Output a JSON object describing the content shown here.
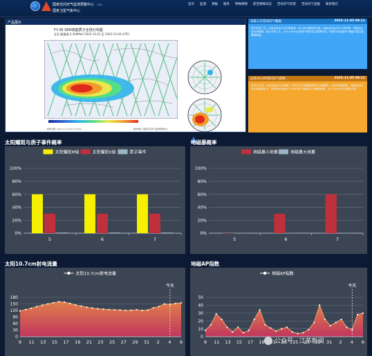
{
  "header": {
    "org_line1": "国家空间天气监测预警中心",
    "org_line2": "国家卫星气象中心",
    "org_en": "CMA",
    "nav": [
      "首页",
      "监测",
      "预报",
      "服务",
      "特殊保障",
      "航空保障日志",
      "空间天气科普",
      "空间天气宣报",
      "联系我们"
    ]
  },
  "product": {
    "panel_title": "产品展示",
    "map_caption": "FY-3E SEM高能质子全球分布图",
    "map_subcaption": "全天    能量道:3-300MeV    2025-10-21 至 2025-11-04 (UTC)",
    "source_left": "制作日期: 2025-11-04 06:41 (UTC)",
    "source_right": "制作单位: 国家空间天气监测预警中心",
    "site_url": "spaceweather.cma.gov.cn"
  },
  "alerts": [
    {
      "title": "未来三天空间天气警报",
      "time": "2025-11-05 09:11",
      "body": "预计未来三天，太阳活动水平为中等到高，有小到大耀斑的可能；地磁活动水平为小到中等，可能会出现大地磁暴。预计未来三天，大于10MeV太阳质子事件发生概率较低，地球同步轨道电子通量可能达到警报阈值。"
    },
    {
      "title": "过去24小时空间天气回顾",
      "time": "2025-11-05 09:11",
      "body": "过去24小时，太阳活动水平为高等，共发生2次M级耀斑和1次X级耀斑。太阳风速度较高，地磁活动达到大地磁暴水平。地球同步轨道大于2MeV电子通量未达到警报阈值，大于10MeV质子通量正常。"
    }
  ],
  "charts": [
    {
      "title": "太阳耀斑与质子事件概率",
      "legend": [
        "太阳耀斑M级",
        "太阳耀斑X级",
        "质子事件"
      ],
      "colors": [
        "#f5f000",
        "#c0303c",
        "#9db4c6"
      ],
      "y_ticks": [
        "100%",
        "80%",
        "60%",
        "40%",
        "20%",
        "0%"
      ],
      "categories": [
        "5",
        "6",
        "7"
      ]
    },
    {
      "title": "地磁暴概率",
      "legend": [
        "地磁暴小地暴",
        "地磁暴大地暴"
      ],
      "colors": [
        "#c0303c",
        "#9db4c6"
      ],
      "y_ticks": [
        "100%",
        "80%",
        "60%",
        "40%",
        "20%",
        "0%"
      ],
      "categories": [
        "5",
        "6",
        "7"
      ]
    },
    {
      "title": "太阳10.7cm射电流量",
      "legend": [
        "太阳10.7cm射电流量"
      ],
      "today_label": "今天",
      "y_ticks": [
        "180",
        "150",
        "120",
        "90",
        "60",
        "30",
        "0"
      ],
      "x_ticks": [
        "9",
        "11",
        "13",
        "15",
        "17",
        "19",
        "21",
        "23",
        "25",
        "27",
        "29",
        "31",
        "2",
        "4",
        "6"
      ]
    },
    {
      "title": "地磁AP指数",
      "legend": [
        "地磁AP指数"
      ],
      "today_label": "今天",
      "y_ticks": [
        "50",
        "40",
        "30",
        "20",
        "10",
        "0"
      ],
      "x_ticks": [
        "9",
        "11",
        "13",
        "15",
        "17",
        "19",
        "21",
        "23",
        "25",
        "27",
        "29",
        "31",
        "2",
        "4",
        "6"
      ]
    }
  ],
  "chart_data": [
    {
      "type": "bar",
      "categories": [
        "5",
        "6",
        "7"
      ],
      "series": [
        {
          "name": "太阳耀斑M级",
          "values": [
            60,
            60,
            60
          ]
        },
        {
          "name": "太阳耀斑X级",
          "values": [
            30,
            30,
            30
          ]
        },
        {
          "name": "质子事件",
          "values": [
            1,
            1,
            1
          ]
        }
      ],
      "ylim": [
        0,
        100
      ]
    },
    {
      "type": "bar",
      "categories": [
        "5",
        "6",
        "7"
      ],
      "series": [
        {
          "name": "地磁暴小地暴",
          "values": [
            0,
            30,
            60
          ]
        },
        {
          "name": "地磁暴大地暴",
          "values": [
            0,
            0,
            0
          ]
        }
      ],
      "ylim": [
        0,
        100
      ]
    },
    {
      "type": "area",
      "x": [
        9,
        10,
        11,
        12,
        13,
        14,
        15,
        16,
        17,
        18,
        19,
        20,
        21,
        22,
        23,
        24,
        25,
        26,
        27,
        28,
        29,
        30,
        31,
        1,
        2,
        3,
        4,
        5,
        6,
        7
      ],
      "series": [
        {
          "name": "太阳10.7cm射电流量",
          "values": [
            118,
            124,
            130,
            138,
            144,
            150,
            155,
            160,
            158,
            152,
            145,
            140,
            135,
            131,
            128,
            126,
            124,
            123,
            122,
            120,
            121,
            123,
            120,
            122,
            132,
            138,
            150,
            148,
            152,
            155
          ]
        }
      ],
      "ylim": [
        0,
        180
      ]
    },
    {
      "type": "area",
      "x": [
        9,
        10,
        11,
        12,
        13,
        14,
        15,
        16,
        17,
        18,
        19,
        20,
        21,
        22,
        23,
        24,
        25,
        26,
        27,
        28,
        29,
        30,
        31,
        1,
        2,
        3,
        4,
        5,
        6,
        7
      ],
      "series": [
        {
          "name": "地磁AP指数",
          "values": [
            8,
            15,
            29,
            22,
            12,
            6,
            12,
            5,
            8,
            22,
            34,
            15,
            11,
            7,
            10,
            12,
            6,
            4,
            5,
            9,
            18,
            40,
            22,
            14,
            18,
            22,
            12,
            9,
            28,
            30
          ]
        }
      ],
      "ylim": [
        0,
        50
      ]
    }
  ]
}
